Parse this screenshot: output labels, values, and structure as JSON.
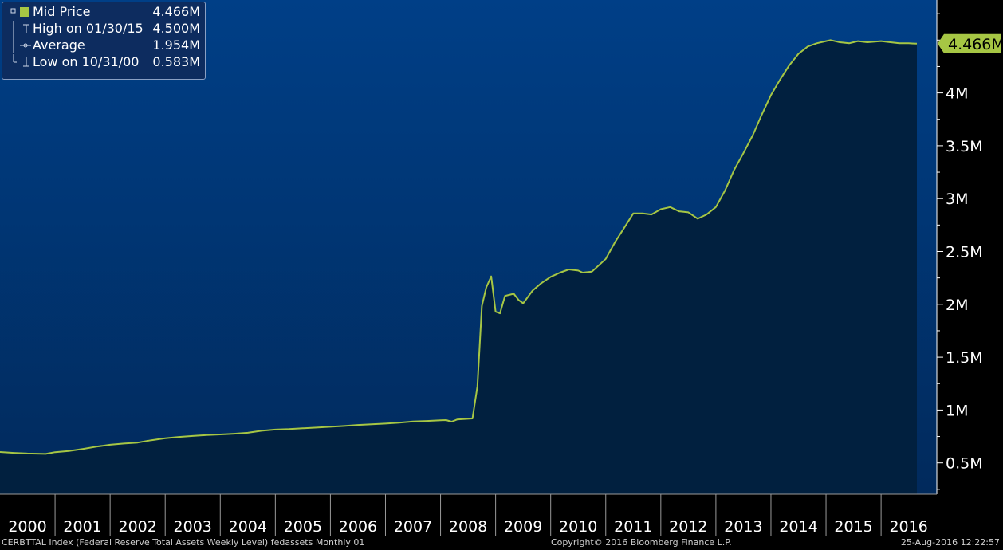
{
  "legend": {
    "rows": [
      {
        "label": "Mid Price",
        "value": "4.466M",
        "kind": "swatch"
      },
      {
        "label": "High on 01/30/15",
        "value": "4.500M",
        "kind": "high"
      },
      {
        "label": "Average",
        "value": "1.954M",
        "kind": "avg"
      },
      {
        "label": "Low on 10/31/00",
        "value": "0.583M",
        "kind": "low"
      }
    ]
  },
  "last_value_label": "4.466M",
  "footer": {
    "left": "CERBTTAL Index (Federal Reserve Total Assets Weekly Level) fedassets  Monthly 01",
    "center": "Copyright© 2016 Bloomberg Finance L.P.",
    "right": "25-Aug-2016 12:22:57"
  },
  "colors": {
    "line": "#a6c644",
    "area": "#01203f",
    "bg_top": "#003f87",
    "bg_bottom": "#012c60",
    "axis": "#ffffff"
  },
  "chart_data": {
    "type": "area",
    "title": "",
    "xlabel": "",
    "ylabel": "",
    "x_tick_labels": [
      "2000",
      "2001",
      "2002",
      "2003",
      "2004",
      "2005",
      "2006",
      "2007",
      "2008",
      "2009",
      "2010",
      "2011",
      "2012",
      "2013",
      "2014",
      "2015",
      "2016"
    ],
    "y_tick_labels": [
      "0.5M",
      "1M",
      "1.5M",
      "2M",
      "2.5M",
      "3M",
      "3.5M",
      "4M"
    ],
    "y_ticks": [
      0.5,
      1,
      1.5,
      2,
      2.5,
      3,
      3.5,
      4
    ],
    "ylim": [
      0.3,
      4.9
    ],
    "xlim": [
      2000.0,
      2016.75
    ],
    "grid": false,
    "series": [
      {
        "name": "Mid Price",
        "unit": "M",
        "points": [
          [
            2000.0,
            0.603
          ],
          [
            2000.25,
            0.595
          ],
          [
            2000.5,
            0.589
          ],
          [
            2000.83,
            0.585
          ],
          [
            2001.0,
            0.602
          ],
          [
            2001.25,
            0.612
          ],
          [
            2001.5,
            0.632
          ],
          [
            2001.75,
            0.654
          ],
          [
            2002.0,
            0.672
          ],
          [
            2002.25,
            0.683
          ],
          [
            2002.5,
            0.692
          ],
          [
            2002.75,
            0.715
          ],
          [
            2003.0,
            0.734
          ],
          [
            2003.25,
            0.746
          ],
          [
            2003.5,
            0.755
          ],
          [
            2003.75,
            0.763
          ],
          [
            2004.0,
            0.769
          ],
          [
            2004.25,
            0.776
          ],
          [
            2004.5,
            0.785
          ],
          [
            2004.75,
            0.804
          ],
          [
            2005.0,
            0.815
          ],
          [
            2005.25,
            0.82
          ],
          [
            2005.5,
            0.827
          ],
          [
            2005.75,
            0.834
          ],
          [
            2006.0,
            0.842
          ],
          [
            2006.25,
            0.849
          ],
          [
            2006.5,
            0.859
          ],
          [
            2006.75,
            0.865
          ],
          [
            2007.0,
            0.872
          ],
          [
            2007.25,
            0.88
          ],
          [
            2007.5,
            0.892
          ],
          [
            2007.75,
            0.897
          ],
          [
            2008.0,
            0.903
          ],
          [
            2008.1,
            0.905
          ],
          [
            2008.2,
            0.89
          ],
          [
            2008.3,
            0.91
          ],
          [
            2008.58,
            0.92
          ],
          [
            2008.67,
            1.225
          ],
          [
            2008.75,
            1.985
          ],
          [
            2008.83,
            2.16
          ],
          [
            2008.92,
            2.265
          ],
          [
            2009.0,
            1.93
          ],
          [
            2009.08,
            1.915
          ],
          [
            2009.17,
            2.08
          ],
          [
            2009.33,
            2.1
          ],
          [
            2009.42,
            2.04
          ],
          [
            2009.5,
            2.01
          ],
          [
            2009.67,
            2.13
          ],
          [
            2009.83,
            2.2
          ],
          [
            2010.0,
            2.26
          ],
          [
            2010.17,
            2.3
          ],
          [
            2010.33,
            2.33
          ],
          [
            2010.5,
            2.32
          ],
          [
            2010.58,
            2.3
          ],
          [
            2010.75,
            2.31
          ],
          [
            2011.0,
            2.43
          ],
          [
            2011.17,
            2.59
          ],
          [
            2011.33,
            2.72
          ],
          [
            2011.5,
            2.86
          ],
          [
            2011.67,
            2.86
          ],
          [
            2011.83,
            2.85
          ],
          [
            2012.0,
            2.9
          ],
          [
            2012.17,
            2.92
          ],
          [
            2012.33,
            2.88
          ],
          [
            2012.5,
            2.87
          ],
          [
            2012.67,
            2.81
          ],
          [
            2012.83,
            2.85
          ],
          [
            2013.0,
            2.92
          ],
          [
            2013.17,
            3.08
          ],
          [
            2013.33,
            3.27
          ],
          [
            2013.5,
            3.43
          ],
          [
            2013.67,
            3.6
          ],
          [
            2013.83,
            3.79
          ],
          [
            2014.0,
            3.98
          ],
          [
            2014.17,
            4.13
          ],
          [
            2014.33,
            4.26
          ],
          [
            2014.5,
            4.37
          ],
          [
            2014.67,
            4.44
          ],
          [
            2014.83,
            4.47
          ],
          [
            2015.0,
            4.49
          ],
          [
            2015.08,
            4.5
          ],
          [
            2015.25,
            4.48
          ],
          [
            2015.42,
            4.47
          ],
          [
            2015.58,
            4.49
          ],
          [
            2015.75,
            4.48
          ],
          [
            2016.0,
            4.49
          ],
          [
            2016.17,
            4.48
          ],
          [
            2016.33,
            4.47
          ],
          [
            2016.5,
            4.47
          ],
          [
            2016.65,
            4.466
          ]
        ]
      }
    ]
  }
}
